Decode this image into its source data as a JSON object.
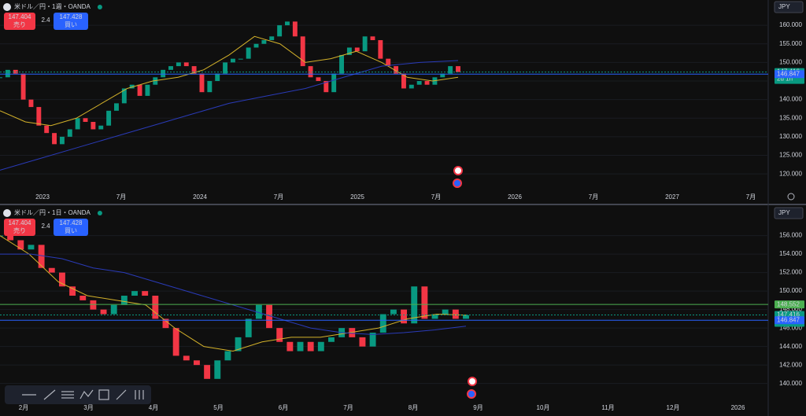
{
  "chart_data": [
    {
      "type": "candlestick",
      "title": "米ドル／円・1週・OANDA",
      "currency": "JPY",
      "sell_price": 147.404,
      "sell_label": "売り",
      "spread": 2.4,
      "buy_price": 147.428,
      "buy_label": "買い",
      "up_color": "#089981",
      "down_color": "#f23645",
      "values": [
        146,
        148,
        147,
        140,
        138,
        133,
        131,
        128,
        130,
        132,
        135,
        134,
        132,
        133,
        137,
        139,
        143,
        144,
        141,
        144,
        146,
        148,
        149,
        150,
        149,
        147,
        142,
        145,
        147,
        150,
        151,
        151,
        154,
        155,
        156,
        157,
        160,
        161,
        157,
        149,
        146,
        145,
        142,
        147,
        152,
        154,
        153,
        157,
        156,
        151,
        149,
        147,
        143,
        144,
        145,
        144,
        146,
        147,
        149,
        147.4
      ],
      "overlays": [
        {
          "color": "#d4b22a",
          "values": [
            137,
            134,
            133,
            135,
            139,
            143,
            145,
            146,
            148,
            152,
            157,
            155,
            150,
            151,
            153,
            150,
            146,
            145,
            146
          ]
        },
        {
          "color": "#2a3bb8",
          "values": [
            121,
            124,
            127,
            130,
            133,
            136,
            139,
            141,
            143,
            146,
            149,
            150,
            150.5
          ]
        }
      ],
      "xlabels": [
        "2023",
        "7月",
        "2024",
        "7月",
        "2025",
        "7月",
        "2026",
        "7月",
        "2027",
        "7月"
      ],
      "ylim": [
        112.2,
        166.8
      ],
      "yticks": [
        {
          "value": 120,
          "label": "120.000"
        },
        {
          "value": 125,
          "label": "125.000"
        },
        {
          "value": 130,
          "label": "130.000"
        },
        {
          "value": 135,
          "label": "135.000"
        },
        {
          "value": 140,
          "label": "140.000"
        },
        {
          "value": 145,
          "label": "145.000"
        },
        {
          "value": 150,
          "label": "150.000"
        },
        {
          "value": 155,
          "label": "155.000"
        },
        {
          "value": 160,
          "label": "160.000"
        }
      ],
      "price_tags": [
        {
          "value": 147.416,
          "sub": "2d 1h",
          "color": "#089981"
        },
        {
          "value": 146.847,
          "color": "#2962ff"
        }
      ]
    },
    {
      "type": "candlestick",
      "title": "米ドル／円・1日・OANDA",
      "currency": "JPY",
      "sell_price": 147.404,
      "sell_label": "売り",
      "spread": 2.4,
      "buy_price": 147.428,
      "buy_label": "買い",
      "up_color": "#089981",
      "down_color": "#f23645",
      "values": [
        156,
        155.5,
        154.5,
        155,
        152.5,
        152,
        150.5,
        149.5,
        149,
        148,
        147.5,
        148.5,
        149.5,
        150,
        149.5,
        147,
        146,
        143,
        142.5,
        142,
        140.5,
        142.5,
        143.5,
        145,
        147,
        148.5,
        146,
        144.5,
        143.5,
        144.5,
        143.5,
        144.5,
        145,
        146,
        145,
        144,
        145.5,
        147.5,
        148,
        146.5,
        150.5,
        147,
        147.5,
        148,
        147,
        147.4
      ],
      "overlays": [
        {
          "color": "#d4b22a",
          "values": [
            156,
            154,
            151,
            149.5,
            149,
            148.5,
            146,
            144,
            143.5,
            144.5,
            145,
            145,
            145.5,
            146,
            147,
            147.5,
            147.4
          ]
        },
        {
          "color": "#2a3bb8",
          "values": [
            154,
            154,
            153.5,
            152.5,
            152,
            151,
            150,
            149,
            148,
            147,
            146,
            145.5,
            145.3,
            145.5,
            145.8,
            146.2
          ]
        }
      ],
      "xlabels": [
        "2月",
        "3月",
        "4月",
        "5月",
        "6月",
        "7月",
        "8月",
        "9月",
        "10月",
        "11月",
        "12月",
        "2026"
      ],
      "ylim": [
        138.1,
        159.2
      ],
      "yticks": [
        {
          "value": 140,
          "label": "140.000"
        },
        {
          "value": 142,
          "label": "142.000"
        },
        {
          "value": 144,
          "label": "144.000"
        },
        {
          "value": 146,
          "label": "146.000"
        },
        {
          "value": 148,
          "label": "148.000"
        },
        {
          "value": 150,
          "label": "150.000"
        },
        {
          "value": 152,
          "label": "152.000"
        },
        {
          "value": 154,
          "label": "154.000"
        },
        {
          "value": 156,
          "label": "156.000"
        }
      ],
      "price_tags": [
        {
          "value": 148.552,
          "color": "#4caf50"
        },
        {
          "value": 147.416,
          "sub": "00:43",
          "color": "#089981"
        },
        {
          "value": 146.847,
          "color": "#2962ff"
        }
      ]
    }
  ]
}
